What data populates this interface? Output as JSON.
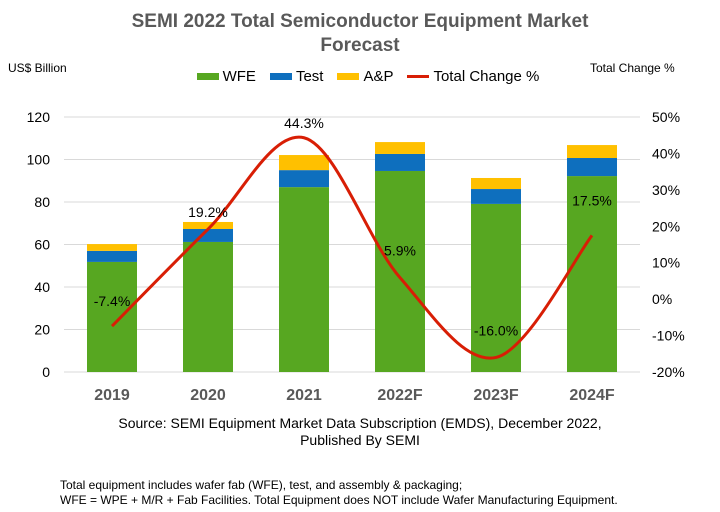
{
  "chart_data": {
    "type": "bar",
    "subtype": "stacked-bar-with-line",
    "title": "SEMI 2022 Total Semiconductor Equipment Market Forecast",
    "ylabel": "US$ Billion",
    "y2label": "Total Change %",
    "categories": [
      "2019",
      "2020",
      "2021",
      "2022F",
      "2023F",
      "2024F"
    ],
    "ylim": [
      0,
      120
    ],
    "yticks": [
      0,
      20,
      40,
      60,
      80,
      100,
      120
    ],
    "y2lim": [
      -20,
      50
    ],
    "y2ticks": [
      "-20%",
      "-10%",
      "0%",
      "10%",
      "20%",
      "30%",
      "40%",
      "50%"
    ],
    "y2tick_values": [
      -20,
      -10,
      0,
      10,
      20,
      30,
      40,
      50
    ],
    "grid": true,
    "legend_position": "top",
    "series": [
      {
        "name": "WFE",
        "type": "bar",
        "color": "#57A721",
        "values": [
          51.8,
          61.2,
          87.0,
          94.6,
          79.1,
          92.2
        ]
      },
      {
        "name": "Test",
        "type": "bar",
        "color": "#0E6FBE",
        "values": [
          5.2,
          6.1,
          8.0,
          8.0,
          7.0,
          8.5
        ]
      },
      {
        "name": "A&P",
        "type": "bar",
        "color": "#FFC000",
        "values": [
          3.2,
          3.3,
          7.1,
          5.6,
          5.2,
          6.1
        ]
      },
      {
        "name": "Total Change %",
        "type": "line",
        "axis": "right",
        "color": "#D81E05",
        "values": [
          -7.4,
          19.2,
          44.3,
          5.9,
          -16.0,
          17.5
        ],
        "labels": [
          "-7.4%",
          "19.2%",
          "44.3%",
          "5.9%",
          "-16.0%",
          "17.5%"
        ]
      }
    ]
  },
  "source_line1": "Source: SEMI Equipment  Market Data Subscription (EMDS), December 2022,",
  "source_line2": "Published  By SEMI",
  "note_line1": "Total equipment includes wafer fab (WFE), test, and assembly & packaging;",
  "note_line2": "WFE = WPE + M/R + Fab Facilities. Total Equipment does NOT include Wafer Manufacturing Equipment."
}
